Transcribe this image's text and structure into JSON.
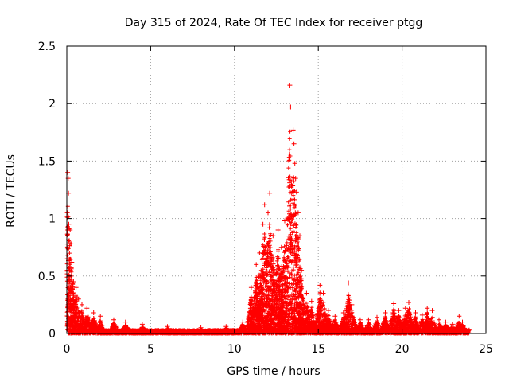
{
  "chart_data": {
    "type": "scatter",
    "title": "Day 315 of 2024, Rate Of TEC Index for receiver ptgg",
    "xlabel": "GPS time / hours",
    "ylabel": "ROTI / TECUs",
    "xlim": [
      0,
      25
    ],
    "ylim": [
      0,
      2.5
    ],
    "xticks": [
      0,
      5,
      10,
      15,
      20,
      25
    ],
    "yticks": [
      0,
      0.5,
      1,
      1.5,
      2,
      2.5
    ],
    "xtick_labels": [
      "0",
      "5",
      "10",
      "15",
      "20",
      "25"
    ],
    "ytick_labels": [
      "0",
      "0.5",
      "1",
      "1.5",
      "2",
      "2.5"
    ],
    "grid": true,
    "marker": "+",
    "series": [
      {
        "name": "ROTI",
        "color": "#ff0000",
        "points": [
          [
            0.05,
            1.4
          ],
          [
            0.08,
            1.35
          ],
          [
            0.1,
            1.22
          ],
          [
            0.03,
            1.05
          ],
          [
            0.12,
            0.95
          ],
          [
            0.2,
            0.9
          ],
          [
            0.25,
            0.78
          ],
          [
            0.3,
            0.62
          ],
          [
            0.15,
            0.55
          ],
          [
            0.4,
            0.45
          ],
          [
            0.55,
            0.4
          ],
          [
            0.7,
            0.3
          ],
          [
            0.9,
            0.25
          ],
          [
            1.2,
            0.22
          ],
          [
            1.6,
            0.18
          ],
          [
            2.0,
            0.15
          ],
          [
            2.8,
            0.12
          ],
          [
            3.5,
            0.1
          ],
          [
            4.5,
            0.08
          ],
          [
            6.0,
            0.06
          ],
          [
            8.0,
            0.05
          ],
          [
            9.5,
            0.06
          ],
          [
            10.5,
            0.1
          ],
          [
            11.0,
            0.4
          ],
          [
            11.3,
            0.6
          ],
          [
            11.5,
            0.7
          ],
          [
            11.7,
            0.95
          ],
          [
            11.8,
            1.12
          ],
          [
            12.0,
            1.05
          ],
          [
            12.1,
            1.22
          ],
          [
            12.3,
            0.85
          ],
          [
            12.6,
            0.9
          ],
          [
            12.8,
            0.75
          ],
          [
            13.0,
            0.98
          ],
          [
            13.2,
            1.0
          ],
          [
            13.3,
            2.16
          ],
          [
            13.35,
            1.97
          ],
          [
            13.5,
            1.77
          ],
          [
            13.55,
            1.65
          ],
          [
            13.6,
            1.48
          ],
          [
            13.65,
            1.35
          ],
          [
            13.7,
            1.23
          ],
          [
            13.8,
            1.05
          ],
          [
            13.9,
            0.85
          ],
          [
            14.0,
            0.55
          ],
          [
            14.3,
            0.35
          ],
          [
            14.6,
            0.28
          ],
          [
            15.1,
            0.42
          ],
          [
            15.3,
            0.35
          ],
          [
            15.6,
            0.2
          ],
          [
            16.0,
            0.15
          ],
          [
            16.5,
            0.18
          ],
          [
            16.8,
            0.44
          ],
          [
            17.0,
            0.25
          ],
          [
            17.5,
            0.12
          ],
          [
            18.0,
            0.12
          ],
          [
            18.5,
            0.14
          ],
          [
            19.0,
            0.18
          ],
          [
            19.5,
            0.26
          ],
          [
            19.8,
            0.2
          ],
          [
            20.2,
            0.22
          ],
          [
            20.4,
            0.27
          ],
          [
            20.8,
            0.18
          ],
          [
            21.2,
            0.16
          ],
          [
            21.5,
            0.22
          ],
          [
            21.8,
            0.2
          ],
          [
            22.2,
            0.12
          ],
          [
            22.6,
            0.1
          ],
          [
            23.0,
            0.08
          ],
          [
            23.4,
            0.15
          ],
          [
            23.6,
            0.1
          ],
          [
            24.0,
            0.03
          ]
        ]
      }
    ]
  }
}
